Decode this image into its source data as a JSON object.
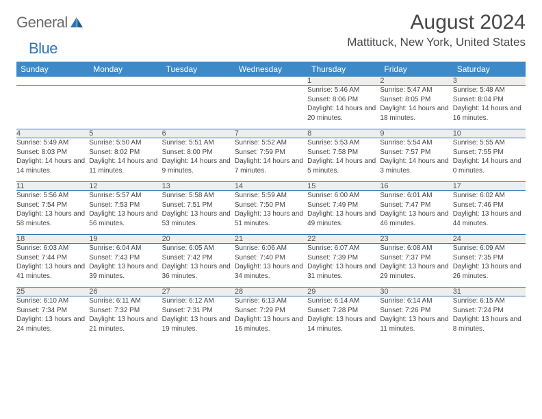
{
  "brand": {
    "part1": "General",
    "part2": "Blue"
  },
  "title": "August 2024",
  "location": "Mattituck, New York, United States",
  "colors": {
    "header_bg": "#3e8ac8",
    "rule": "#2f74b5",
    "daynum_bg": "#eeeeee",
    "text": "#444444",
    "title_text": "#464646"
  },
  "weekdays": [
    "Sunday",
    "Monday",
    "Tuesday",
    "Wednesday",
    "Thursday",
    "Friday",
    "Saturday"
  ],
  "weeks": [
    [
      null,
      null,
      null,
      null,
      {
        "n": "1",
        "sr": "Sunrise: 5:46 AM",
        "ss": "Sunset: 8:06 PM",
        "dl": "Daylight: 14 hours and 20 minutes."
      },
      {
        "n": "2",
        "sr": "Sunrise: 5:47 AM",
        "ss": "Sunset: 8:05 PM",
        "dl": "Daylight: 14 hours and 18 minutes."
      },
      {
        "n": "3",
        "sr": "Sunrise: 5:48 AM",
        "ss": "Sunset: 8:04 PM",
        "dl": "Daylight: 14 hours and 16 minutes."
      }
    ],
    [
      {
        "n": "4",
        "sr": "Sunrise: 5:49 AM",
        "ss": "Sunset: 8:03 PM",
        "dl": "Daylight: 14 hours and 14 minutes."
      },
      {
        "n": "5",
        "sr": "Sunrise: 5:50 AM",
        "ss": "Sunset: 8:02 PM",
        "dl": "Daylight: 14 hours and 11 minutes."
      },
      {
        "n": "6",
        "sr": "Sunrise: 5:51 AM",
        "ss": "Sunset: 8:00 PM",
        "dl": "Daylight: 14 hours and 9 minutes."
      },
      {
        "n": "7",
        "sr": "Sunrise: 5:52 AM",
        "ss": "Sunset: 7:59 PM",
        "dl": "Daylight: 14 hours and 7 minutes."
      },
      {
        "n": "8",
        "sr": "Sunrise: 5:53 AM",
        "ss": "Sunset: 7:58 PM",
        "dl": "Daylight: 14 hours and 5 minutes."
      },
      {
        "n": "9",
        "sr": "Sunrise: 5:54 AM",
        "ss": "Sunset: 7:57 PM",
        "dl": "Daylight: 14 hours and 3 minutes."
      },
      {
        "n": "10",
        "sr": "Sunrise: 5:55 AM",
        "ss": "Sunset: 7:55 PM",
        "dl": "Daylight: 14 hours and 0 minutes."
      }
    ],
    [
      {
        "n": "11",
        "sr": "Sunrise: 5:56 AM",
        "ss": "Sunset: 7:54 PM",
        "dl": "Daylight: 13 hours and 58 minutes."
      },
      {
        "n": "12",
        "sr": "Sunrise: 5:57 AM",
        "ss": "Sunset: 7:53 PM",
        "dl": "Daylight: 13 hours and 56 minutes."
      },
      {
        "n": "13",
        "sr": "Sunrise: 5:58 AM",
        "ss": "Sunset: 7:51 PM",
        "dl": "Daylight: 13 hours and 53 minutes."
      },
      {
        "n": "14",
        "sr": "Sunrise: 5:59 AM",
        "ss": "Sunset: 7:50 PM",
        "dl": "Daylight: 13 hours and 51 minutes."
      },
      {
        "n": "15",
        "sr": "Sunrise: 6:00 AM",
        "ss": "Sunset: 7:49 PM",
        "dl": "Daylight: 13 hours and 49 minutes."
      },
      {
        "n": "16",
        "sr": "Sunrise: 6:01 AM",
        "ss": "Sunset: 7:47 PM",
        "dl": "Daylight: 13 hours and 46 minutes."
      },
      {
        "n": "17",
        "sr": "Sunrise: 6:02 AM",
        "ss": "Sunset: 7:46 PM",
        "dl": "Daylight: 13 hours and 44 minutes."
      }
    ],
    [
      {
        "n": "18",
        "sr": "Sunrise: 6:03 AM",
        "ss": "Sunset: 7:44 PM",
        "dl": "Daylight: 13 hours and 41 minutes."
      },
      {
        "n": "19",
        "sr": "Sunrise: 6:04 AM",
        "ss": "Sunset: 7:43 PM",
        "dl": "Daylight: 13 hours and 39 minutes."
      },
      {
        "n": "20",
        "sr": "Sunrise: 6:05 AM",
        "ss": "Sunset: 7:42 PM",
        "dl": "Daylight: 13 hours and 36 minutes."
      },
      {
        "n": "21",
        "sr": "Sunrise: 6:06 AM",
        "ss": "Sunset: 7:40 PM",
        "dl": "Daylight: 13 hours and 34 minutes."
      },
      {
        "n": "22",
        "sr": "Sunrise: 6:07 AM",
        "ss": "Sunset: 7:39 PM",
        "dl": "Daylight: 13 hours and 31 minutes."
      },
      {
        "n": "23",
        "sr": "Sunrise: 6:08 AM",
        "ss": "Sunset: 7:37 PM",
        "dl": "Daylight: 13 hours and 29 minutes."
      },
      {
        "n": "24",
        "sr": "Sunrise: 6:09 AM",
        "ss": "Sunset: 7:35 PM",
        "dl": "Daylight: 13 hours and 26 minutes."
      }
    ],
    [
      {
        "n": "25",
        "sr": "Sunrise: 6:10 AM",
        "ss": "Sunset: 7:34 PM",
        "dl": "Daylight: 13 hours and 24 minutes."
      },
      {
        "n": "26",
        "sr": "Sunrise: 6:11 AM",
        "ss": "Sunset: 7:32 PM",
        "dl": "Daylight: 13 hours and 21 minutes."
      },
      {
        "n": "27",
        "sr": "Sunrise: 6:12 AM",
        "ss": "Sunset: 7:31 PM",
        "dl": "Daylight: 13 hours and 19 minutes."
      },
      {
        "n": "28",
        "sr": "Sunrise: 6:13 AM",
        "ss": "Sunset: 7:29 PM",
        "dl": "Daylight: 13 hours and 16 minutes."
      },
      {
        "n": "29",
        "sr": "Sunrise: 6:14 AM",
        "ss": "Sunset: 7:28 PM",
        "dl": "Daylight: 13 hours and 14 minutes."
      },
      {
        "n": "30",
        "sr": "Sunrise: 6:14 AM",
        "ss": "Sunset: 7:26 PM",
        "dl": "Daylight: 13 hours and 11 minutes."
      },
      {
        "n": "31",
        "sr": "Sunrise: 6:15 AM",
        "ss": "Sunset: 7:24 PM",
        "dl": "Daylight: 13 hours and 8 minutes."
      }
    ]
  ]
}
